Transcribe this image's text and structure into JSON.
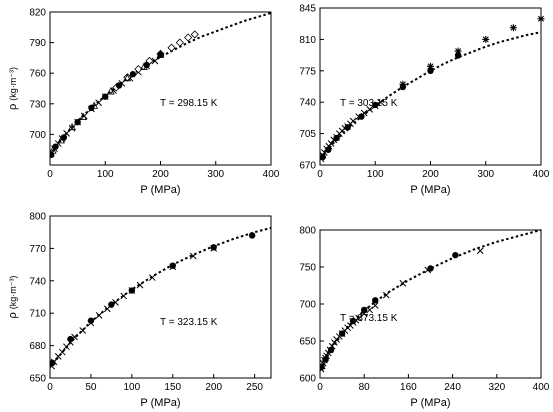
{
  "chart_data": [
    {
      "type": "scatter",
      "annotation": "T = 298.15 K",
      "xlabel": "P (MPa)",
      "ylabel_main": "ρ",
      "ylabel_unit": "(kg·m⁻³)",
      "xlim": [
        0,
        400
      ],
      "ylim": [
        670,
        820
      ],
      "xticks": [
        0,
        100,
        200,
        300,
        400
      ],
      "yticks": [
        700,
        730,
        760,
        790,
        820
      ],
      "ytick_labels": [
        "700",
        "730",
        "760",
        "790",
        "820"
      ],
      "curve": {
        "x": [
          0,
          25,
          50,
          75,
          100,
          125,
          150,
          175,
          200,
          225,
          250,
          275,
          300,
          325,
          350,
          375,
          400
        ],
        "y": [
          680,
          698,
          713,
          726,
          738,
          749,
          759,
          768,
          776,
          783,
          790,
          796,
          801,
          806,
          811,
          815,
          819
        ]
      },
      "series": [
        {
          "marker": "cross",
          "x": [
            2,
            8,
            15,
            22,
            30,
            40,
            50,
            62,
            75,
            88,
            100,
            115,
            130,
            145,
            160,
            175,
            190
          ],
          "y": [
            681,
            686,
            691,
            696,
            701,
            706,
            712,
            718,
            725,
            731,
            737,
            743,
            750,
            755,
            761,
            767,
            772
          ]
        },
        {
          "marker": "diamond",
          "x": [
            120,
            140,
            160,
            180,
            200,
            220,
            235,
            250,
            262
          ],
          "y": [
            746,
            756,
            764,
            772,
            779,
            785,
            790,
            795,
            798
          ]
        },
        {
          "marker": "circle",
          "x": [
            2,
            10,
            25,
            50,
            75,
            100,
            125,
            150,
            175,
            200
          ],
          "y": [
            680,
            688,
            697,
            712,
            726,
            737,
            748,
            759,
            768,
            778
          ]
        },
        {
          "marker": "tri",
          "x": [
            5,
            20,
            40,
            60,
            80,
            110,
            140,
            170,
            200
          ],
          "y": [
            684,
            694,
            707,
            717,
            728,
            742,
            755,
            766,
            778
          ]
        }
      ]
    },
    {
      "type": "scatter",
      "annotation": "T = 303.15 K",
      "xlabel": "P (MPa)",
      "xlim": [
        0,
        400
      ],
      "ylim": [
        670,
        845
      ],
      "xticks": [
        0,
        100,
        200,
        300,
        400
      ],
      "yticks": [
        670,
        705,
        740,
        775,
        810,
        845
      ],
      "ytick_labels": [
        "670",
        "705",
        "740",
        "775",
        "810",
        "845"
      ],
      "curve": {
        "x": [
          0,
          25,
          50,
          75,
          100,
          125,
          150,
          175,
          200,
          225,
          250,
          275,
          300,
          325,
          350,
          375,
          400
        ],
        "y": [
          676,
          695,
          711,
          724,
          736,
          747,
          757,
          766,
          775,
          783,
          790,
          796,
          802,
          807,
          811,
          815,
          818
        ]
      },
      "series": [
        {
          "marker": "cross",
          "x": [
            2,
            5,
            8,
            12,
            16,
            20,
            25,
            30,
            35,
            40,
            45,
            50,
            55,
            60,
            70,
            80,
            90,
            100,
            110
          ],
          "y": [
            677,
            681,
            684,
            688,
            691,
            694,
            698,
            701,
            705,
            708,
            711,
            713,
            716,
            719,
            724,
            728,
            732,
            736,
            740
          ]
        },
        {
          "marker": "asterisk",
          "x": [
            150,
            200,
            250,
            300,
            350,
            400
          ],
          "y": [
            760,
            780,
            797,
            810,
            823,
            833
          ]
        },
        {
          "marker": "circle",
          "x": [
            5,
            15,
            30,
            50,
            75,
            100,
            150,
            200,
            250
          ],
          "y": [
            679,
            687,
            700,
            712,
            724,
            737,
            757,
            775,
            792
          ]
        }
      ]
    },
    {
      "type": "scatter",
      "annotation": "T = 323.15 K",
      "xlabel": "P (MPa)",
      "ylabel_main": "ρ",
      "ylabel_unit": "(kg·m⁻³)",
      "xlim": [
        0,
        270
      ],
      "ylim": [
        650,
        800
      ],
      "xticks": [
        0,
        50,
        100,
        150,
        200,
        250
      ],
      "yticks": [
        650,
        680,
        710,
        740,
        770,
        800
      ],
      "ytick_labels": [
        "650",
        "680",
        "710",
        "740",
        "770",
        "800"
      ],
      "curve": {
        "x": [
          0,
          25,
          50,
          75,
          100,
          125,
          150,
          175,
          200,
          225,
          250,
          270
        ],
        "y": [
          660,
          683,
          702,
          718,
          732,
          744,
          755,
          764,
          772,
          779,
          785,
          789
        ]
      },
      "series": [
        {
          "marker": "cross",
          "x": [
            2,
            5,
            10,
            15,
            20,
            25,
            30,
            40,
            50,
            60,
            70,
            80,
            90,
            100,
            110,
            125,
            150,
            175,
            200
          ],
          "y": [
            661,
            665,
            670,
            674,
            679,
            683,
            688,
            694,
            701,
            708,
            714,
            720,
            726,
            731,
            736,
            743,
            753,
            763,
            770
          ]
        },
        {
          "marker": "circle",
          "x": [
            3,
            25,
            50,
            75,
            100,
            150,
            200,
            247
          ],
          "y": [
            664,
            686,
            703,
            718,
            731,
            754,
            771,
            782
          ]
        }
      ]
    },
    {
      "type": "scatter",
      "annotation": "T = 373.15 K",
      "xlabel": "P (MPa)",
      "xlim": [
        0,
        400
      ],
      "ylim": [
        600,
        800
      ],
      "xticks": [
        0,
        80,
        160,
        240,
        320,
        400
      ],
      "yticks": [
        600,
        650,
        700,
        750,
        800
      ],
      "ytick_labels": [
        "600",
        "650",
        "700",
        "750",
        "800"
      ],
      "curve": {
        "x": [
          0,
          20,
          40,
          60,
          80,
          100,
          120,
          160,
          200,
          240,
          280,
          320,
          360,
          400
        ],
        "y": [
          610,
          638,
          660,
          677,
          691,
          703,
          714,
          732,
          748,
          762,
          774,
          784,
          792,
          800
        ]
      },
      "series": [
        {
          "marker": "cross",
          "x": [
            2,
            4,
            6,
            8,
            10,
            12,
            15,
            18,
            22,
            26,
            30,
            35,
            40,
            45,
            50,
            55,
            60,
            65,
            70,
            80,
            90,
            100,
            120,
            150,
            195,
            290
          ],
          "y": [
            612,
            616,
            620,
            624,
            627,
            630,
            634,
            638,
            643,
            648,
            652,
            656,
            660,
            664,
            668,
            671,
            675,
            678,
            681,
            687,
            692,
            698,
            712,
            728,
            746,
            772
          ]
        },
        {
          "marker": "circle",
          "x": [
            3,
            10,
            20,
            40,
            60,
            80,
            100,
            200,
            245
          ],
          "y": [
            615,
            625,
            638,
            660,
            677,
            692,
            705,
            748,
            766
          ]
        }
      ]
    }
  ]
}
